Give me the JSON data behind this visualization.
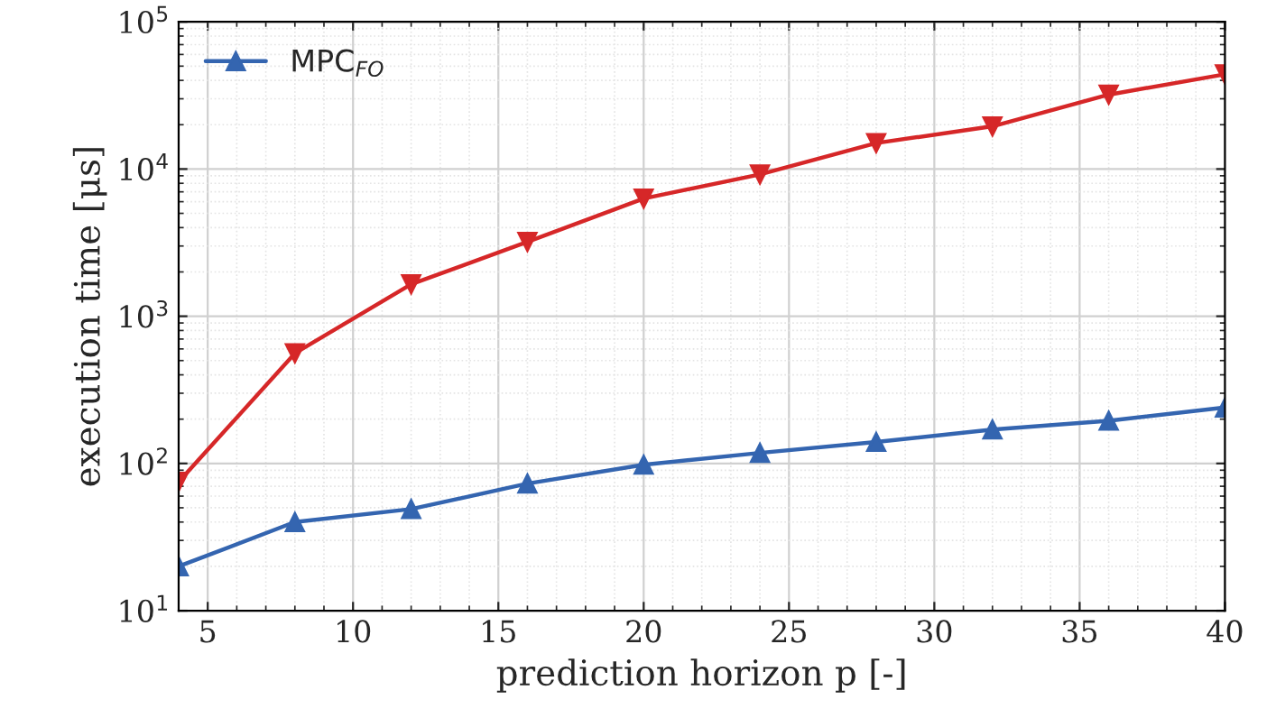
{
  "chart_data": {
    "type": "line",
    "xlabel": "prediction horizon p [-]",
    "ylabel": "execution time [μs]",
    "x": [
      4,
      8,
      12,
      16,
      20,
      24,
      28,
      32,
      36,
      40
    ],
    "series": [
      {
        "color": "#d62728",
        "marker": "triangle_down",
        "values": [
          75,
          560,
          1650,
          3200,
          6300,
          9200,
          15000,
          19500,
          32000,
          44000
        ]
      },
      {
        "name": "MPC$_{FO}$",
        "color": "#3465b0",
        "marker": "triangle",
        "values": [
          20,
          40,
          49,
          73,
          98,
          118,
          140,
          170,
          195,
          240
        ]
      }
    ],
    "log": "y",
    "xlim": [
      4,
      40
    ],
    "xticks": [
      5,
      10,
      15,
      20,
      25,
      30,
      35,
      40
    ],
    "ylim": [
      10,
      100000
    ],
    "yticks": [
      {
        "value": 10,
        "label": "10$^{1}$"
      },
      {
        "value": 100,
        "label": "10$^{2}$"
      },
      {
        "value": 1000,
        "label": "10$^{3}$"
      },
      {
        "value": 10000,
        "label": "10$^{4}$"
      },
      {
        "value": 100000,
        "label": "10$^{5}$"
      }
    ],
    "grid": true,
    "legend": "top left",
    "line_style": "solid"
  }
}
